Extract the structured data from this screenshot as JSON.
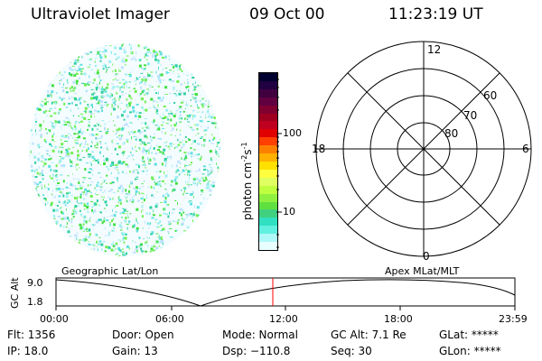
{
  "header": {
    "instrument": "Ultraviolet Imager",
    "date": "09 Oct 00",
    "time": "11:23:19 UT"
  },
  "colorbar": {
    "unit_label": "photon cm",
    "unit_exp1": "-2",
    "unit_mid": "s",
    "unit_exp2": "-1",
    "tick_100": "100",
    "tick_10": "10",
    "colors": [
      "#000030",
      "#200040",
      "#400040",
      "#600040",
      "#800030",
      "#a00020",
      "#c00020",
      "#e00000",
      "#ff4000",
      "#ff8000",
      "#ffb000",
      "#ffe000",
      "#ffff40",
      "#e0ff60",
      "#c0ff40",
      "#90f040",
      "#60e040",
      "#40d080",
      "#30e0c0",
      "#60f0e0",
      "#b0f8f8",
      "#e8ffff"
    ]
  },
  "image": {
    "dot_colors": [
      "#40e040",
      "#30d0a0",
      "#60e0e0",
      "#a0f0f0",
      "#c0e0ff",
      "#70f050"
    ]
  },
  "polar": {
    "mlt_12": "12",
    "mlt_18": "18",
    "mlt_6": "6",
    "mlt_0": "0",
    "lat_60": "60",
    "lat_70": "70",
    "lat_80": "80"
  },
  "orbit": {
    "left_label": "Geographic Lat/Lon",
    "right_label": "Apex MLat/MLT",
    "axis_label": "GC Alt",
    "y_high": "9.0",
    "y_low": "1.8",
    "x_ticks": [
      "00:00",
      "06:00",
      "12:00",
      "18:00",
      "23:59"
    ],
    "current_time_color": "#ff0000"
  },
  "info": {
    "flt": "Flt: 1356",
    "ip": "IP: 18.0",
    "door": "Door: Open",
    "gain": "Gain: 13",
    "mode": "Mode: Normal",
    "dsp": "Dsp: −110.8",
    "gcalt": "GC Alt: 7.1 Re",
    "seq": "Seq: 30",
    "glat": "GLat: *****",
    "glon": "GLon: *****"
  }
}
